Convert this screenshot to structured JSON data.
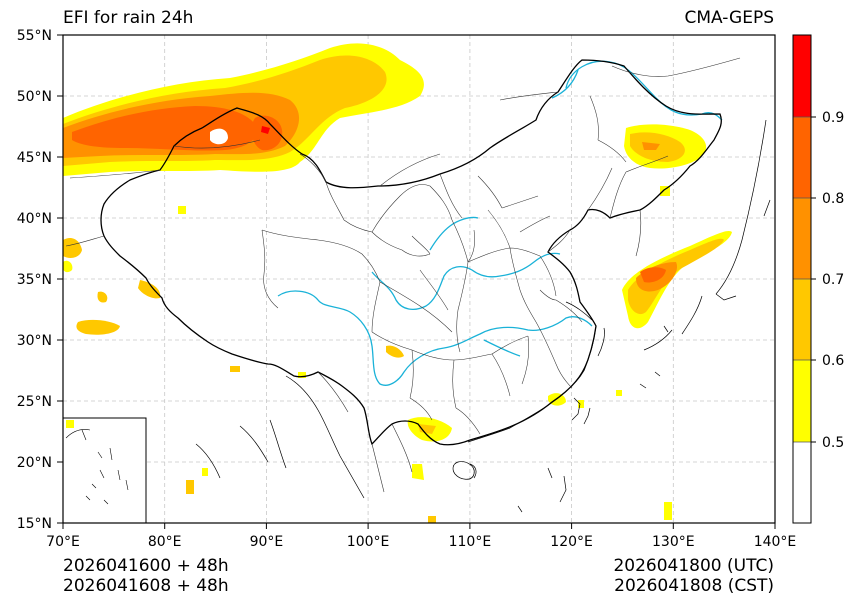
{
  "header": {
    "left_title": "EFI for rain 24h",
    "right_title": "CMA-GEPS"
  },
  "map": {
    "lon_ticks": [
      "70°E",
      "80°E",
      "90°E",
      "100°E",
      "110°E",
      "120°E",
      "130°E",
      "140°E"
    ],
    "lat_ticks": [
      "55°N",
      "50°N",
      "45°N",
      "40°N",
      "35°N",
      "30°N",
      "25°N",
      "20°N",
      "15°N"
    ],
    "extent": {
      "lon": [
        70,
        140
      ],
      "lat": [
        15,
        55
      ]
    }
  },
  "colorbar": {
    "labels": [
      "0.9",
      "0.8",
      "0.7",
      "0.6",
      "0.5"
    ],
    "levels": [
      {
        "range": "0.9-1.0",
        "color": "#ff0000"
      },
      {
        "range": "0.8-0.9",
        "color": "#ff6400"
      },
      {
        "range": "0.7-0.8",
        "color": "#ff9100"
      },
      {
        "range": "0.6-0.7",
        "color": "#ffc800"
      },
      {
        "range": "0.5-0.6",
        "color": "#ffff00"
      },
      {
        "range": "<0.5",
        "color": "#ffffff"
      }
    ]
  },
  "footer": {
    "left_line1": "2026041600 + 48h",
    "left_line2": "2026041608 + 48h",
    "right_line1": "2026041800 (UTC)",
    "right_line2": "2026041808 (CST)"
  },
  "colors": {
    "river": "#1ab2d8",
    "border": "#000000",
    "grid": "#bbbbbb"
  }
}
